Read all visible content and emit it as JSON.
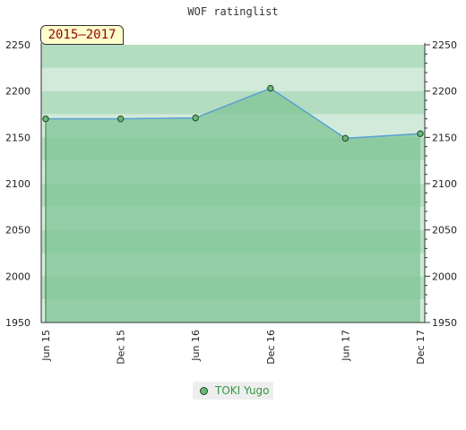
{
  "chart_data": {
    "type": "area",
    "title": "WOF ratinglist",
    "period_label": "2015–2017",
    "x_labels": [
      "Jun 15",
      "Dec 15",
      "Jun 16",
      "Dec 16",
      "Jun 17",
      "Dec 17"
    ],
    "ylim": [
      1950,
      2250
    ],
    "y_ticks": [
      1950,
      2000,
      2050,
      2100,
      2150,
      2200,
      2250
    ],
    "y_axis": "both sides",
    "legend_position": "bottom-center",
    "series": [
      {
        "name": "TOKI Yugo",
        "values": [
          2170,
          2170,
          2171,
          2203,
          2149,
          2154
        ]
      }
    ],
    "colors": {
      "line": "#5a9fd4",
      "fill": "#7fc495",
      "marker_fill": "#66bb77",
      "marker_stroke": "#224422",
      "band_dark": "#b3ddc0",
      "band_light": "#d2ead9",
      "badge_bg": "#ffffcc",
      "badge_text": "#990000",
      "legend_text": "#339944"
    }
  }
}
